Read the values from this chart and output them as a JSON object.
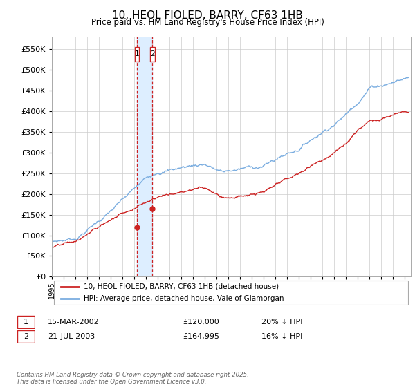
{
  "title": "10, HEOL FIOLED, BARRY, CF63 1HB",
  "subtitle": "Price paid vs. HM Land Registry's House Price Index (HPI)",
  "ytick_values": [
    0,
    50000,
    100000,
    150000,
    200000,
    250000,
    300000,
    350000,
    400000,
    450000,
    500000,
    550000
  ],
  "ylim": [
    0,
    580000
  ],
  "xlim_start": 1995.0,
  "xlim_end": 2025.5,
  "hpi_color": "#7aade0",
  "price_color": "#cc2222",
  "shaded_color": "#ddeeff",
  "marker1_date": 2002.21,
  "marker2_date": 2003.55,
  "marker1_price": 120000,
  "marker2_price": 164995,
  "legend_label_red": "10, HEOL FIOLED, BARRY, CF63 1HB (detached house)",
  "legend_label_blue": "HPI: Average price, detached house, Vale of Glamorgan",
  "table_row1": [
    "1",
    "15-MAR-2002",
    "£120,000",
    "20% ↓ HPI"
  ],
  "table_row2": [
    "2",
    "21-JUL-2003",
    "£164,995",
    "16% ↓ HPI"
  ],
  "footnote": "Contains HM Land Registry data © Crown copyright and database right 2025.\nThis data is licensed under the Open Government Licence v3.0.",
  "background_color": "#ffffff",
  "grid_color": "#cccccc"
}
